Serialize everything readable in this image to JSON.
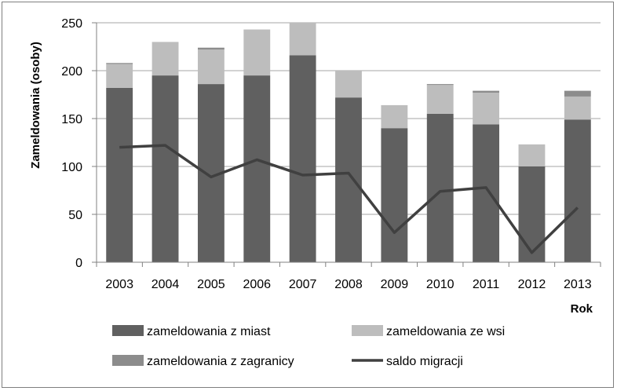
{
  "chart_data": {
    "type": "bar",
    "stacked": true,
    "title": "",
    "xlabel": "Rok",
    "ylabel": "Zameldowania (osoby)",
    "ylim": [
      0,
      250
    ],
    "yticks": [
      "0",
      "50",
      "100",
      "150",
      "200",
      "250"
    ],
    "grid": true,
    "legend_position": "bottom",
    "categories": [
      "2003",
      "2004",
      "2005",
      "2006",
      "2007",
      "2008",
      "2009",
      "2010",
      "2011",
      "2012",
      "2013"
    ],
    "series": [
      {
        "name": "zameldowania z miast",
        "kind": "bar",
        "color": "#606060",
        "values": [
          182,
          195,
          186,
          195,
          216,
          172,
          140,
          155,
          144,
          100,
          149
        ]
      },
      {
        "name": "zameldowania ze wsi",
        "kind": "bar",
        "color": "#bdbdbd",
        "values": [
          25,
          35,
          36,
          48,
          34,
          28,
          24,
          30,
          33,
          23,
          24
        ]
      },
      {
        "name": "zameldowania z zagranicy",
        "kind": "bar",
        "color": "#8c8c8c",
        "values": [
          1,
          0,
          2,
          0,
          0,
          0,
          0,
          1,
          2,
          0,
          6
        ]
      },
      {
        "name": "saldo migracji",
        "kind": "line",
        "color": "#404040",
        "values": [
          120,
          122,
          89,
          107,
          91,
          93,
          31,
          74,
          78,
          10,
          57
        ]
      }
    ]
  }
}
